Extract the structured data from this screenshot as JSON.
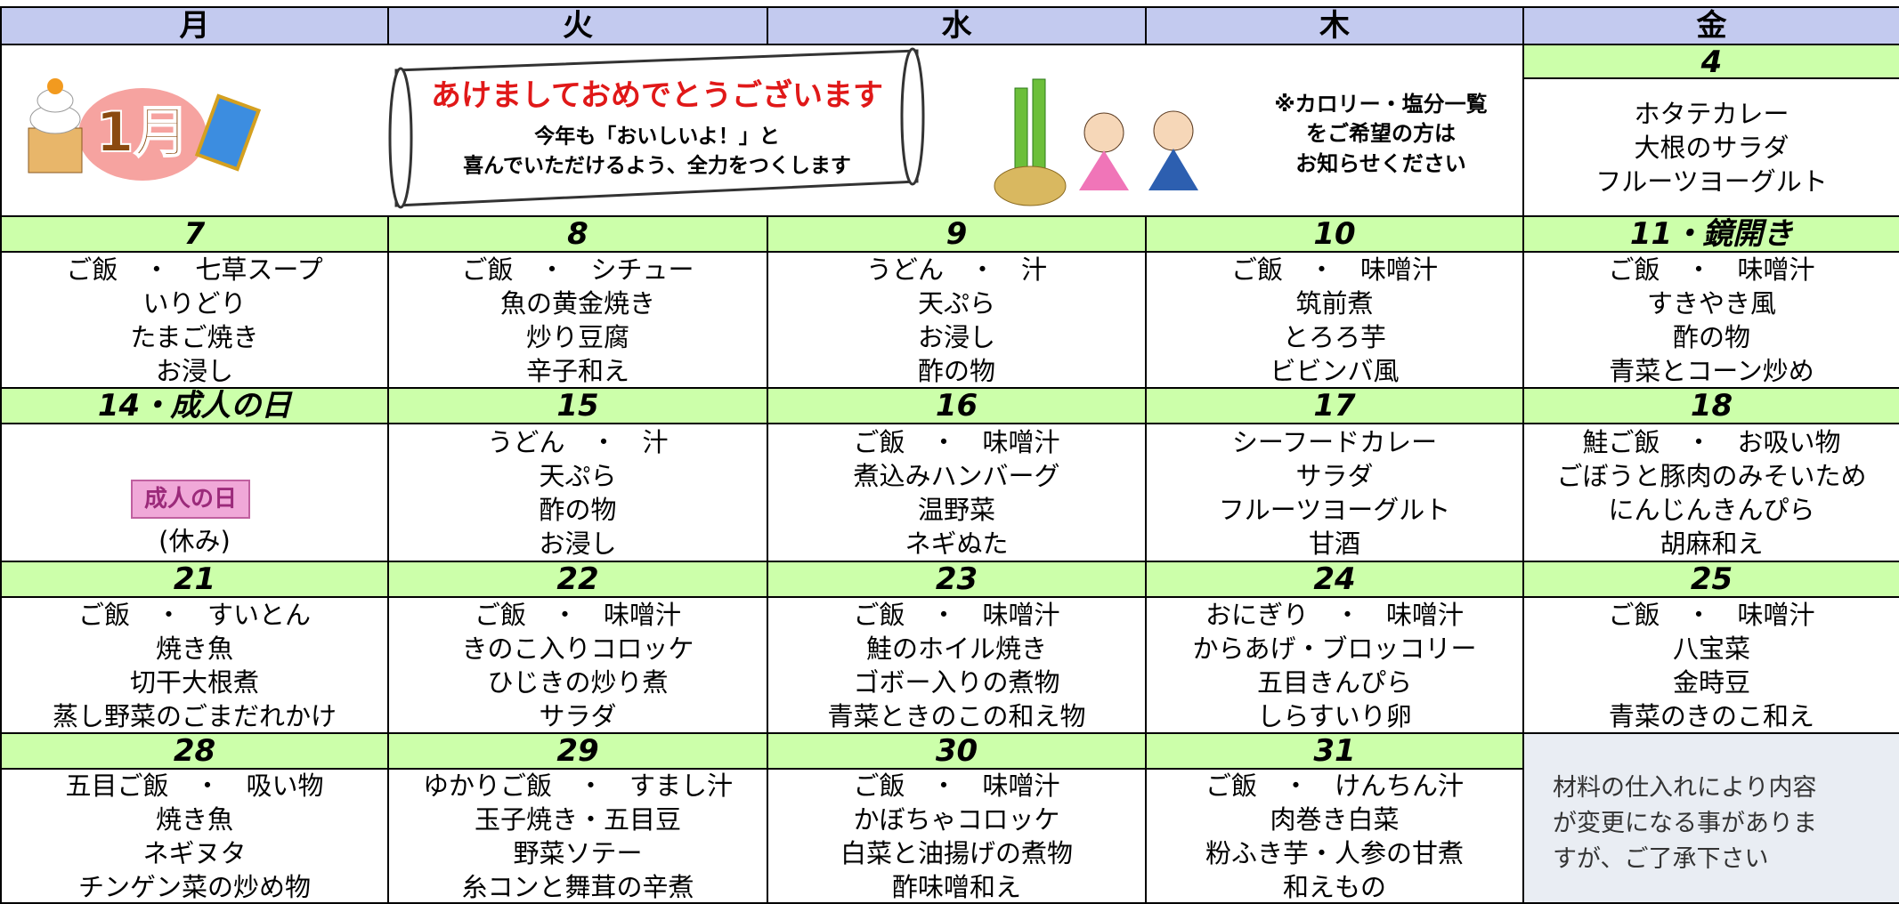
{
  "weekdays": [
    "月",
    "火",
    "水",
    "木",
    "金"
  ],
  "intro": {
    "month": "1月",
    "greeting_title": "あけましておめでとうございます",
    "greeting_lines": [
      "今年も「おいしいよ！」と",
      "喜んでいただけるよう、全力をつくします"
    ],
    "notice_lines": [
      "※カロリー・塩分一覧",
      "をご希望の方は",
      "お知らせください"
    ]
  },
  "first_day": {
    "date": "4",
    "menu": [
      "ホタテカレー",
      "大根のサラダ",
      "フルーツヨーグルト"
    ]
  },
  "weeks": [
    [
      {
        "date": "7",
        "menu": [
          "ご飯　・　七草スープ",
          "いりどり",
          "たまご焼き",
          "お浸し"
        ]
      },
      {
        "date": "8",
        "menu": [
          "ご飯　・　シチュー",
          "魚の黄金焼き",
          "炒り豆腐",
          "辛子和え"
        ]
      },
      {
        "date": "9",
        "menu": [
          "うどん　・　汁",
          "天ぷら",
          "お浸し",
          "酢の物"
        ]
      },
      {
        "date": "10",
        "menu": [
          "ご飯　・　味噌汁",
          "筑前煮",
          "とろろ芋",
          "ビビンバ風"
        ]
      },
      {
        "date": "11・鏡開き",
        "menu": [
          "ご飯　・　味噌汁",
          "すきやき風",
          "酢の物",
          "青菜とコーン炒め"
        ]
      }
    ],
    [
      {
        "date": "14・成人の日",
        "badge": "成人の日",
        "menu": [
          "(休み)"
        ]
      },
      {
        "date": "15",
        "menu": [
          "うどん　・　汁",
          "天ぷら",
          "酢の物",
          "お浸し"
        ]
      },
      {
        "date": "16",
        "menu": [
          "ご飯　・　味噌汁",
          "煮込みハンバーグ",
          "温野菜",
          "ネギぬた"
        ]
      },
      {
        "date": "17",
        "menu": [
          "シーフードカレー",
          "サラダ",
          "フルーツヨーグルト",
          "甘酒"
        ]
      },
      {
        "date": "18",
        "menu": [
          "鮭ご飯　・　お吸い物",
          "ごぼうと豚肉のみそいため",
          "にんじんきんぴら",
          "胡麻和え"
        ]
      }
    ],
    [
      {
        "date": "21",
        "menu": [
          "ご飯　・　すいとん",
          "焼き魚",
          "切干大根煮",
          "蒸し野菜のごまだれかけ"
        ]
      },
      {
        "date": "22",
        "menu": [
          "ご飯　・　味噌汁",
          "きのこ入りコロッケ",
          "ひじきの炒り煮",
          "サラダ"
        ]
      },
      {
        "date": "23",
        "menu": [
          "ご飯　・　味噌汁",
          "鮭のホイル焼き",
          "ゴボー入りの煮物",
          "青菜ときのこの和え物"
        ]
      },
      {
        "date": "24",
        "menu": [
          "おにぎり　・　味噌汁",
          "からあげ・ブロッコリー",
          "五目きんぴら",
          "しらすいり卵"
        ]
      },
      {
        "date": "25",
        "menu": [
          "ご飯　・　味噌汁",
          "八宝菜",
          "金時豆",
          "青菜のきのこ和え"
        ]
      }
    ],
    [
      {
        "date": "28",
        "menu": [
          "五目ご飯　・　吸い物",
          "焼き魚",
          "ネギヌタ",
          "チンゲン菜の炒め物"
        ]
      },
      {
        "date": "29",
        "menu": [
          "ゆかりご飯　・　すまし汁",
          "玉子焼き・五目豆",
          "野菜ソテー",
          "糸コンと舞茸の辛煮"
        ]
      },
      {
        "date": "30",
        "menu": [
          "ご飯　・　味噌汁",
          "かぼちゃコロッケ",
          "白菜と油揚げの煮物",
          "酢味噌和え"
        ]
      },
      {
        "date": "31",
        "menu": [
          "ご飯　・　けんちん汁",
          "肉巻き白菜",
          "粉ふき芋・人参の甘煮",
          "和えもの"
        ]
      }
    ]
  ],
  "note_lines": [
    "材料の仕入れにより内容",
    "が変更になる事がありま",
    "すが、ご了承下さい"
  ]
}
